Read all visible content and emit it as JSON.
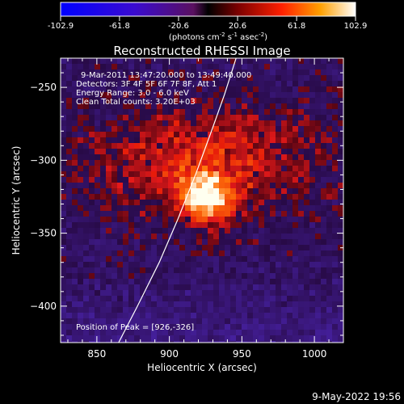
{
  "colorbar": {
    "tick_labels": [
      "-102.9",
      "-61.8",
      "-20.6",
      "20.6",
      "61.8",
      "102.9"
    ],
    "range": [
      -102.9,
      102.9
    ],
    "units_prefix": "(photons cm",
    "units_exp1": "-2",
    "units_mid": " s",
    "units_exp2": "-1",
    "units_mid2": " asec",
    "units_exp3": "-2",
    "units_suffix": ")"
  },
  "chart_data": {
    "type": "heatmap",
    "title": "Reconstructed RHESSI Image",
    "xlabel": "Heliocentric X (arcsec)",
    "ylabel": "Heliocentric Y (arcsec)",
    "xlim": [
      825,
      1020
    ],
    "ylim": [
      -425,
      -230
    ],
    "x_ticks": [
      850,
      900,
      950,
      1000
    ],
    "y_ticks": [
      -250,
      -300,
      -350,
      -400
    ],
    "x_tick_labels": [
      "850",
      "900",
      "950",
      "1000"
    ],
    "y_tick_labels": [
      "−250",
      "−300",
      "−350",
      "−400"
    ],
    "peak": [
      926,
      -326
    ],
    "limb": [
      [
        865,
        -425
      ],
      [
        878,
        -400
      ],
      [
        893,
        -370
      ],
      [
        906,
        -340
      ],
      [
        918,
        -310
      ],
      [
        929,
        -280
      ],
      [
        938,
        -255
      ],
      [
        946,
        -230
      ]
    ],
    "annotations": {
      "time_range": "9-Mar-2011 13:47:20.000 to 13:49:40.000",
      "detectors": "Detectors: 3F 4F 5F 6F 7F 8F, Att 1",
      "energy": "Energy Range: 3.0 - 6.0 keV",
      "clean": "Clean     Total counts: 3.20E+03",
      "peak_text": "Position of Peak = [926,-326]"
    }
  },
  "footer": {
    "date": "9-May-2022 19:56"
  }
}
